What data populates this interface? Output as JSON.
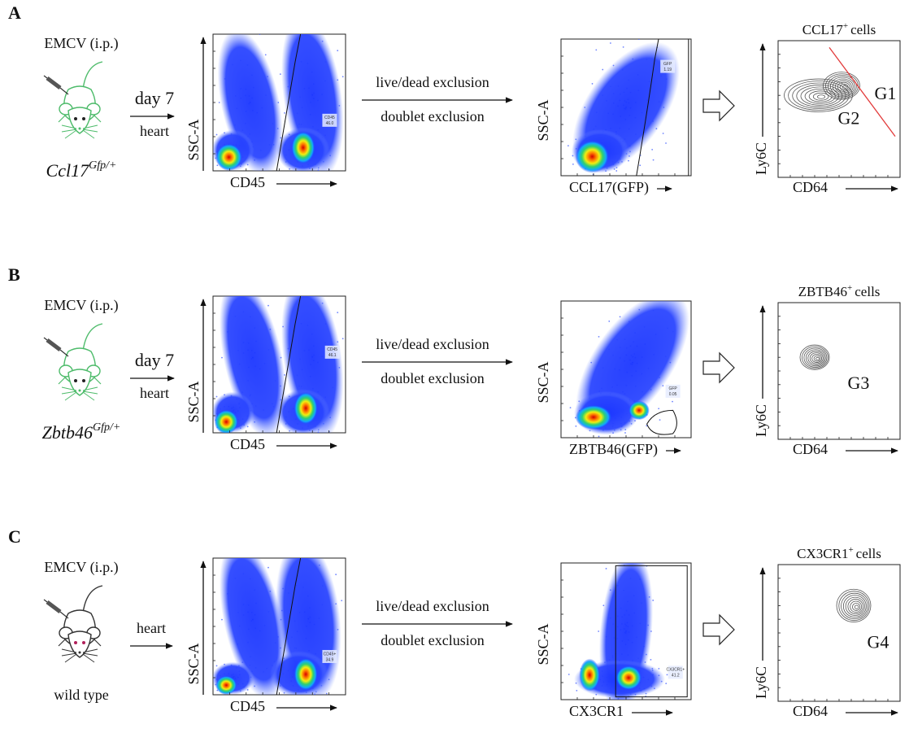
{
  "panels": [
    {
      "label": "A",
      "treatment": "EMCV (i.p.)",
      "timepoint": "day 7",
      "tissue": "heart",
      "genotype": {
        "gene": "Ccl17",
        "allele": "Gfp/+"
      },
      "plot1": {
        "y_label": "SSC-A",
        "x_label": "CD45",
        "gate_name": "CD45",
        "gate_value": "46.0"
      },
      "gating": [
        "live/dead exclusion",
        "doublet exclusion"
      ],
      "plot2": {
        "y_label": "SSC-A",
        "x_label": "CCL17(GFP)",
        "gate_name": "GFP",
        "gate_value": "1.19"
      },
      "plot3": {
        "title": "CCL17",
        "title_sup": "+",
        "title_rest": "cells",
        "y_label": "Ly6C",
        "x_label": "CD64",
        "gates": [
          "G1",
          "G2"
        ]
      }
    },
    {
      "label": "B",
      "treatment": "EMCV (i.p.)",
      "timepoint": "day 7",
      "tissue": "heart",
      "genotype": {
        "gene": "Zbtb46",
        "allele": "Gfp/+"
      },
      "plot1": {
        "y_label": "SSC-A",
        "x_label": "CD45",
        "gate_name": "CD45",
        "gate_value": "46.1"
      },
      "gating": [
        "live/dead exclusion",
        "doublet exclusion"
      ],
      "plot2": {
        "y_label": "SSC-A",
        "x_label": "ZBTB46(GFP)",
        "gate_name": "GFP",
        "gate_value": "0.05"
      },
      "plot3": {
        "title": "ZBTB46",
        "title_sup": "+",
        "title_rest": "cells",
        "y_label": "Ly6C",
        "x_label": "CD64",
        "gates": [
          "G3"
        ]
      }
    },
    {
      "label": "C",
      "treatment": "EMCV (i.p.)",
      "tissue": "heart",
      "genotype": {
        "text": "wild type"
      },
      "plot1": {
        "y_label": "SSC-A",
        "x_label": "CD45",
        "gate_name": "CD45+",
        "gate_value": "34.9"
      },
      "gating": [
        "live/dead exclusion",
        "doublet exclusion"
      ],
      "plot2": {
        "y_label": "SSC-A",
        "x_label": "CX3CR1",
        "gate_name": "CX3CR1+",
        "gate_value": "41.2"
      },
      "plot3": {
        "title": "CX3CR1",
        "title_sup": "+",
        "title_rest": "cells",
        "y_label": "Ly6C",
        "x_label": "CD64",
        "gates": [
          "G4"
        ]
      }
    }
  ]
}
